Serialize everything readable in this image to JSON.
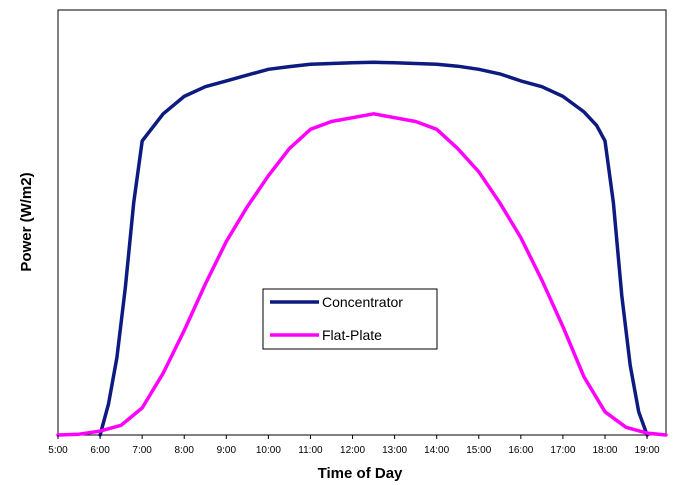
{
  "chart_data": {
    "type": "line",
    "title": "",
    "xlabel": "Time of Day",
    "ylabel": "Power (W/m2)",
    "x_tick_labels": [
      "5:00",
      "6:00",
      "7:00",
      "8:00",
      "9:00",
      "10:00",
      "11:00",
      "12:00",
      "13:00",
      "14:00",
      "15:00",
      "16:00",
      "17:00",
      "18:00",
      "19:00"
    ],
    "xlim": [
      5.0,
      19.45
    ],
    "ylim": [
      0,
      1
    ],
    "y_tick_labels": [],
    "grid": false,
    "legend_position": "center-left",
    "x_units": "hour of day",
    "y_units": "relative power (no y tick labels shown)",
    "series": [
      {
        "name": "Concentrator",
        "color": "#0d1a80",
        "x": [
          6.0,
          6.2,
          6.4,
          6.6,
          6.8,
          7.0,
          7.5,
          8.0,
          8.5,
          9.0,
          9.5,
          10.0,
          10.5,
          11.0,
          11.5,
          12.0,
          12.5,
          13.0,
          13.5,
          14.0,
          14.5,
          15.0,
          15.5,
          16.0,
          16.5,
          17.0,
          17.5,
          17.8,
          18.0,
          18.2,
          18.4,
          18.6,
          18.8,
          19.0
        ],
        "y": [
          0.0,
          0.08,
          0.2,
          0.38,
          0.6,
          0.76,
          0.83,
          0.875,
          0.9,
          0.915,
          0.93,
          0.945,
          0.952,
          0.958,
          0.96,
          0.962,
          0.963,
          0.962,
          0.96,
          0.958,
          0.953,
          0.945,
          0.933,
          0.915,
          0.9,
          0.875,
          0.835,
          0.8,
          0.76,
          0.6,
          0.36,
          0.18,
          0.06,
          0.0
        ]
      },
      {
        "name": "Flat-Plate",
        "color": "#ff00ff",
        "x": [
          5.0,
          5.5,
          6.0,
          6.5,
          7.0,
          7.5,
          8.0,
          8.5,
          9.0,
          9.5,
          10.0,
          10.5,
          11.0,
          11.5,
          12.0,
          12.5,
          13.0,
          13.5,
          14.0,
          14.5,
          15.0,
          15.5,
          16.0,
          16.5,
          17.0,
          17.5,
          18.0,
          18.5,
          19.0,
          19.45
        ],
        "y": [
          0.0,
          0.002,
          0.01,
          0.025,
          0.07,
          0.16,
          0.27,
          0.39,
          0.5,
          0.59,
          0.67,
          0.74,
          0.79,
          0.81,
          0.82,
          0.83,
          0.82,
          0.81,
          0.79,
          0.74,
          0.68,
          0.6,
          0.51,
          0.4,
          0.28,
          0.15,
          0.06,
          0.02,
          0.005,
          0.0
        ]
      }
    ]
  }
}
